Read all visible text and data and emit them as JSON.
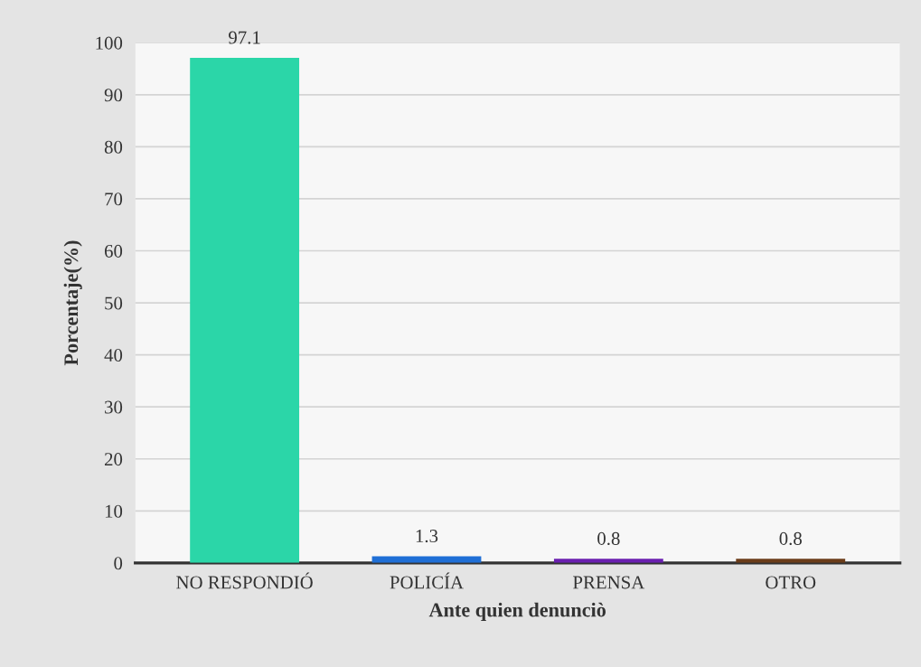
{
  "chart_data": {
    "type": "bar",
    "xlabel": "Ante quien denunciò",
    "ylabel": "Porcentaje(%)",
    "categories": [
      "NO RESPONDIÓ",
      "POLICÍA",
      "PRENSA",
      "OTRO"
    ],
    "values": [
      97.1,
      1.3,
      0.8,
      0.8
    ],
    "colors": [
      "#2bd6a8",
      "#1f6fd6",
      "#6a1fb0",
      "#6b3d1a"
    ],
    "ylim": [
      0,
      100
    ],
    "yticks": [
      0,
      10,
      20,
      30,
      40,
      50,
      60,
      70,
      80,
      90,
      100
    ],
    "grid": "y",
    "data_labels": true
  }
}
